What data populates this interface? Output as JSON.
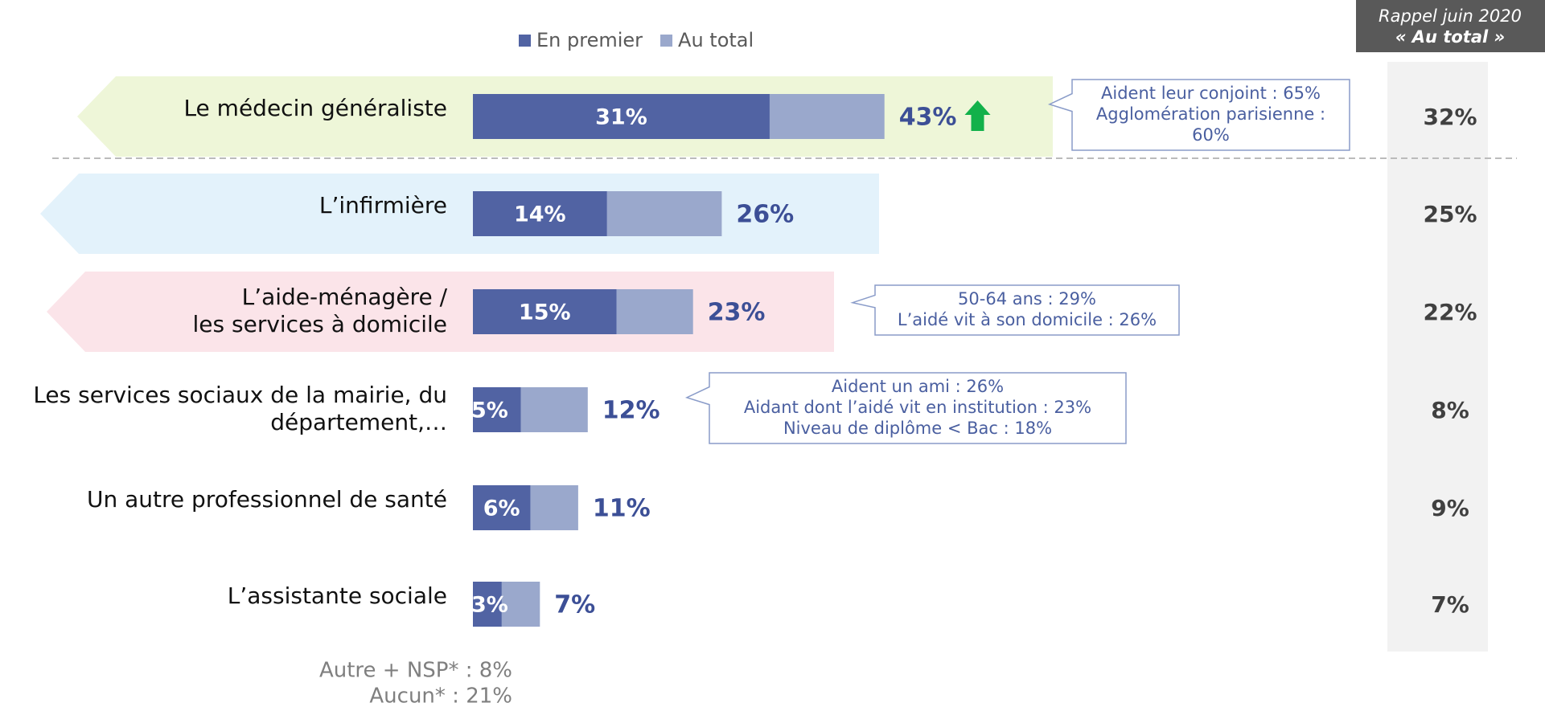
{
  "chart_data": {
    "type": "bar",
    "categories": [
      "Le médecin généraliste",
      "L’infirmière",
      [
        "L’aide-ménagère /",
        "les services à domicile"
      ],
      [
        "Les services sociaux de la mairie, du",
        "département,…"
      ],
      "Un autre professionnel de santé",
      "L’assistante sociale"
    ],
    "series": [
      {
        "name": "En premier",
        "color": "#5163a3",
        "values": [
          31,
          14,
          15,
          5,
          6,
          3
        ],
        "value_labels": [
          "31%",
          "14%",
          "15%",
          "5%",
          "6%",
          "3%"
        ]
      },
      {
        "name": "Au total",
        "color": "#9aa8cc",
        "values": [
          43,
          26,
          23,
          12,
          11,
          7
        ],
        "value_labels": [
          "43%",
          "26%",
          "23%",
          "12%",
          "11%",
          "7%"
        ]
      }
    ],
    "band_colors": [
      "#eef6d8",
      "#e3f2fb",
      "#fbe4e9",
      null,
      null,
      null
    ],
    "up_arrow": [
      true,
      false,
      false,
      false,
      false,
      false
    ],
    "annotations": [
      [
        "Aident leur conjoint : 65%",
        "Agglomération parisienne :",
        "60%"
      ],
      null,
      [
        "50-64 ans : 29%",
        "L’aidé vit à son domicile : 26%"
      ],
      [
        "Aident un ami : 26%",
        "Aidant dont l’aidé vit en institution : 23%",
        "Niveau de diplôme < Bac : 18%"
      ],
      null,
      null
    ],
    "recall": {
      "title": [
        "Rappel juin 2020",
        "« Au total »"
      ],
      "values": [
        32,
        25,
        22,
        8,
        9,
        7
      ],
      "value_labels": [
        "32%",
        "25%",
        "22%",
        "8%",
        "9%",
        "7%"
      ]
    },
    "footnotes": [
      "Autre + NSP* : 8%",
      "Aucun* : 21%"
    ]
  }
}
